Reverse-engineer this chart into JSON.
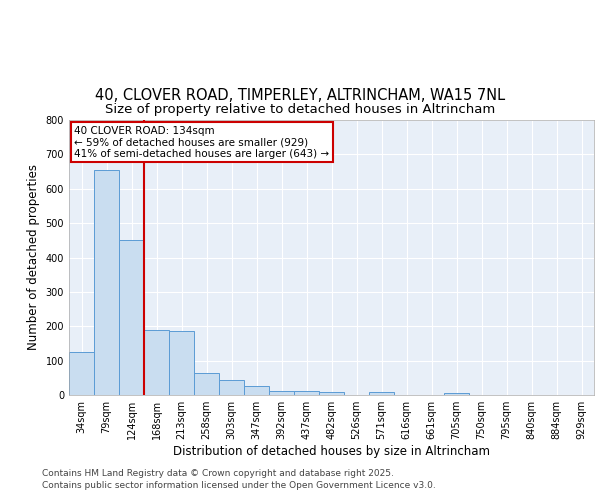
{
  "title": "40, CLOVER ROAD, TIMPERLEY, ALTRINCHAM, WA15 7NL",
  "subtitle": "Size of property relative to detached houses in Altrincham",
  "xlabel": "Distribution of detached houses by size in Altrincham",
  "ylabel": "Number of detached properties",
  "categories": [
    "34sqm",
    "79sqm",
    "124sqm",
    "168sqm",
    "213sqm",
    "258sqm",
    "303sqm",
    "347sqm",
    "392sqm",
    "437sqm",
    "482sqm",
    "526sqm",
    "571sqm",
    "616sqm",
    "661sqm",
    "705sqm",
    "750sqm",
    "795sqm",
    "840sqm",
    "884sqm",
    "929sqm"
  ],
  "values": [
    125,
    655,
    450,
    190,
    185,
    65,
    45,
    25,
    12,
    12,
    8,
    0,
    8,
    0,
    0,
    6,
    0,
    0,
    0,
    0,
    0
  ],
  "bar_color": "#c9ddf0",
  "bar_edge_color": "#5b9bd5",
  "red_line_index": 2,
  "annotation_line1": "40 CLOVER ROAD: 134sqm",
  "annotation_line2": "← 59% of detached houses are smaller (929)",
  "annotation_line3": "41% of semi-detached houses are larger (643) →",
  "annotation_box_color": "#ffffff",
  "annotation_box_edge_color": "#cc0000",
  "ylim": [
    0,
    800
  ],
  "yticks": [
    0,
    100,
    200,
    300,
    400,
    500,
    600,
    700,
    800
  ],
  "background_color": "#e8eff8",
  "grid_color": "#ffffff",
  "footer1": "Contains HM Land Registry data © Crown copyright and database right 2025.",
  "footer2": "Contains public sector information licensed under the Open Government Licence v3.0.",
  "title_fontsize": 10.5,
  "subtitle_fontsize": 9.5,
  "tick_fontsize": 7,
  "ylabel_fontsize": 8.5,
  "xlabel_fontsize": 8.5,
  "annotation_fontsize": 7.5,
  "footer_fontsize": 6.5
}
